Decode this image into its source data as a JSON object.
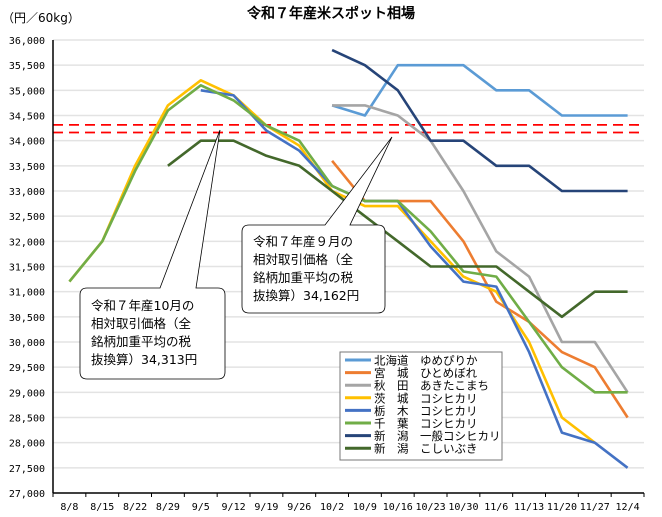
{
  "chart_data": {
    "type": "line",
    "title": "令和７年産米スポット相場",
    "ylabel": "（円／60kg）",
    "xlabel": "",
    "ylim": [
      27000,
      36000
    ],
    "ystep": 500,
    "grid": true,
    "legend_position": "bottom-center",
    "y_tick_labels": [
      "36,000",
      "35,500",
      "35,000",
      "34,500",
      "34,000",
      "33,500",
      "33,000",
      "32,500",
      "32,000",
      "31,500",
      "31,000",
      "30,500",
      "30,000",
      "29,500",
      "29,000",
      "28,500",
      "28,000",
      "27,500",
      "27,000"
    ],
    "categories": [
      "8/8",
      "8/15",
      "8/22",
      "8/29",
      "9/5",
      "9/12",
      "9/19",
      "9/26",
      "10/2",
      "10/9",
      "10/16",
      "10/23",
      "10/30",
      "11/6",
      "11/13",
      "11/20",
      "11/27",
      "12/4"
    ],
    "series": [
      {
        "name": "北海道　ゆめぴりか",
        "color": "#5b9bd5",
        "values": [
          null,
          null,
          null,
          null,
          null,
          null,
          null,
          null,
          34700,
          34500,
          35500,
          35500,
          35500,
          35000,
          35000,
          34500,
          34500,
          34500
        ]
      },
      {
        "name": "宮　城　ひとめぼれ",
        "color": "#ed7d31",
        "values": [
          null,
          null,
          null,
          null,
          null,
          null,
          null,
          null,
          33600,
          32800,
          32800,
          32800,
          32000,
          30800,
          30400,
          29800,
          29500,
          28500
        ]
      },
      {
        "name": "秋　田　あきたこまち",
        "color": "#a5a5a5",
        "values": [
          null,
          null,
          null,
          null,
          null,
          null,
          null,
          null,
          34700,
          34700,
          34500,
          34000,
          33000,
          31800,
          31300,
          30000,
          30000,
          29000
        ]
      },
      {
        "name": "茨　城　コシヒカリ",
        "color": "#ffc000",
        "values": [
          31200,
          32000,
          33500,
          34700,
          35200,
          34900,
          34300,
          33900,
          33000,
          32700,
          32700,
          32000,
          31300,
          31000,
          30000,
          28500,
          28000,
          null
        ]
      },
      {
        "name": "栃　木　コシヒカリ",
        "color": "#4472c4",
        "values": [
          null,
          null,
          null,
          null,
          35000,
          34900,
          34200,
          33800,
          33100,
          32800,
          32800,
          31900,
          31200,
          31100,
          29800,
          28200,
          28000,
          27500
        ]
      },
      {
        "name": "千　葉　コシヒカリ",
        "color": "#70ad47",
        "values": [
          31200,
          32000,
          33400,
          34600,
          35100,
          34800,
          34300,
          34000,
          33100,
          32800,
          32800,
          32200,
          31400,
          31300,
          30400,
          29500,
          29000,
          29000
        ]
      },
      {
        "name": "新　潟　一般コシヒカリ",
        "color": "#264478",
        "values": [
          null,
          null,
          null,
          null,
          null,
          null,
          null,
          null,
          35800,
          35500,
          35000,
          34000,
          34000,
          33500,
          33500,
          33000,
          33000,
          33000
        ]
      },
      {
        "name": "新　潟　こしいぶき",
        "color": "#43682b",
        "values": [
          null,
          null,
          null,
          33500,
          34000,
          34000,
          33700,
          33500,
          33000,
          32500,
          32000,
          31500,
          31500,
          31500,
          31000,
          30500,
          31000,
          31000
        ]
      }
    ],
    "reference_lines": [
      {
        "label": "令和７年産10月の相対取引価格（全銘柄加重平均の税抜換算）34,313円",
        "value": 34313,
        "color": "#ff0000",
        "callout_lines": [
          "令和７年産10月の",
          "相対取引価格（全",
          "銘柄加重平均の税",
          "抜換算）34,313円"
        ]
      },
      {
        "label": "令和７年産９月の相対取引価格（全銘柄加重平均の税抜換算）34,162円",
        "value": 34162,
        "color": "#ff0000",
        "callout_lines": [
          "令和７年産９月の",
          "相対取引価格（全",
          "銘柄加重平均の税",
          "抜換算）34,162円"
        ]
      }
    ]
  }
}
